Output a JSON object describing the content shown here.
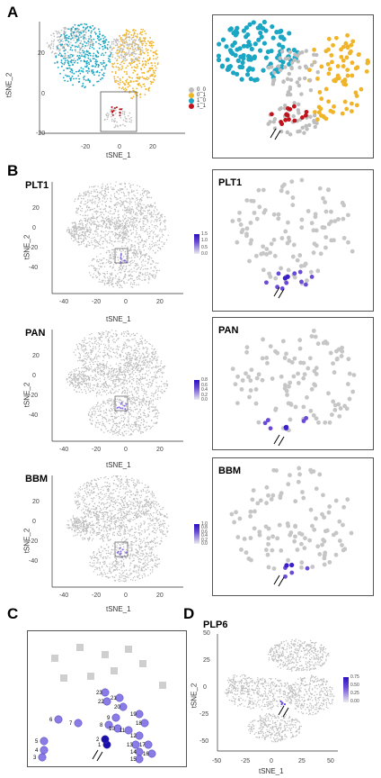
{
  "panels": {
    "A": {
      "letter": "A",
      "xlabel": "tSNE_1",
      "ylabel": "tSNE_2",
      "xticks": [
        "-20",
        "0",
        "20"
      ],
      "yticks": [
        "20",
        "0",
        "-20"
      ],
      "legend": [
        {
          "label": "0_0",
          "color": "#bdbdbd"
        },
        {
          "label": "0_1",
          "color": "#f0b429"
        },
        {
          "label": "1_0",
          "color": "#1ba6c4"
        },
        {
          "label": "1_1",
          "color": "#c0141c"
        }
      ]
    },
    "B": {
      "letter": "B",
      "xlabel": "tSNE_1",
      "ylabel": "tSNE_2",
      "xticks": [
        "-40",
        "-20",
        "0",
        "20"
      ],
      "yticks": [
        "20",
        "0",
        "-20",
        "-40"
      ],
      "genes": [
        {
          "name": "PLT1",
          "scale": [
            "1.5",
            "1.0",
            "0.5",
            "0.0"
          ]
        },
        {
          "name": "PAN",
          "scale": [
            "0.8",
            "0.6",
            "0.4",
            "0.2",
            "0.0"
          ]
        },
        {
          "name": "BBM",
          "scale": [
            "1.0",
            "0.8",
            "0.6",
            "0.4",
            "0.2",
            "0.0"
          ]
        }
      ]
    },
    "C": {
      "letter": "C",
      "cells": [
        "1",
        "2",
        "3",
        "4",
        "5",
        "6",
        "7",
        "8",
        "9",
        "10",
        "11",
        "12",
        "13",
        "14",
        "15",
        "16",
        "17",
        "18",
        "19",
        "20",
        "21",
        "22",
        "23"
      ]
    },
    "D": {
      "letter": "D",
      "gene": "PLP6",
      "xlabel": "tSNE_1",
      "ylabel": "tSNE_2",
      "xticks": [
        "-50",
        "-25",
        "0",
        "25",
        "50"
      ],
      "yticks": [
        "50",
        "25",
        "0",
        "-25",
        "-50"
      ],
      "scale": [
        "0.75",
        "0.50",
        "0.25",
        "0.00"
      ]
    }
  },
  "colors": {
    "grey": "#bdbdbd",
    "yellow": "#f0b429",
    "blue": "#1ba6c4",
    "red": "#c0141c",
    "purple": "#3b1fc9"
  }
}
